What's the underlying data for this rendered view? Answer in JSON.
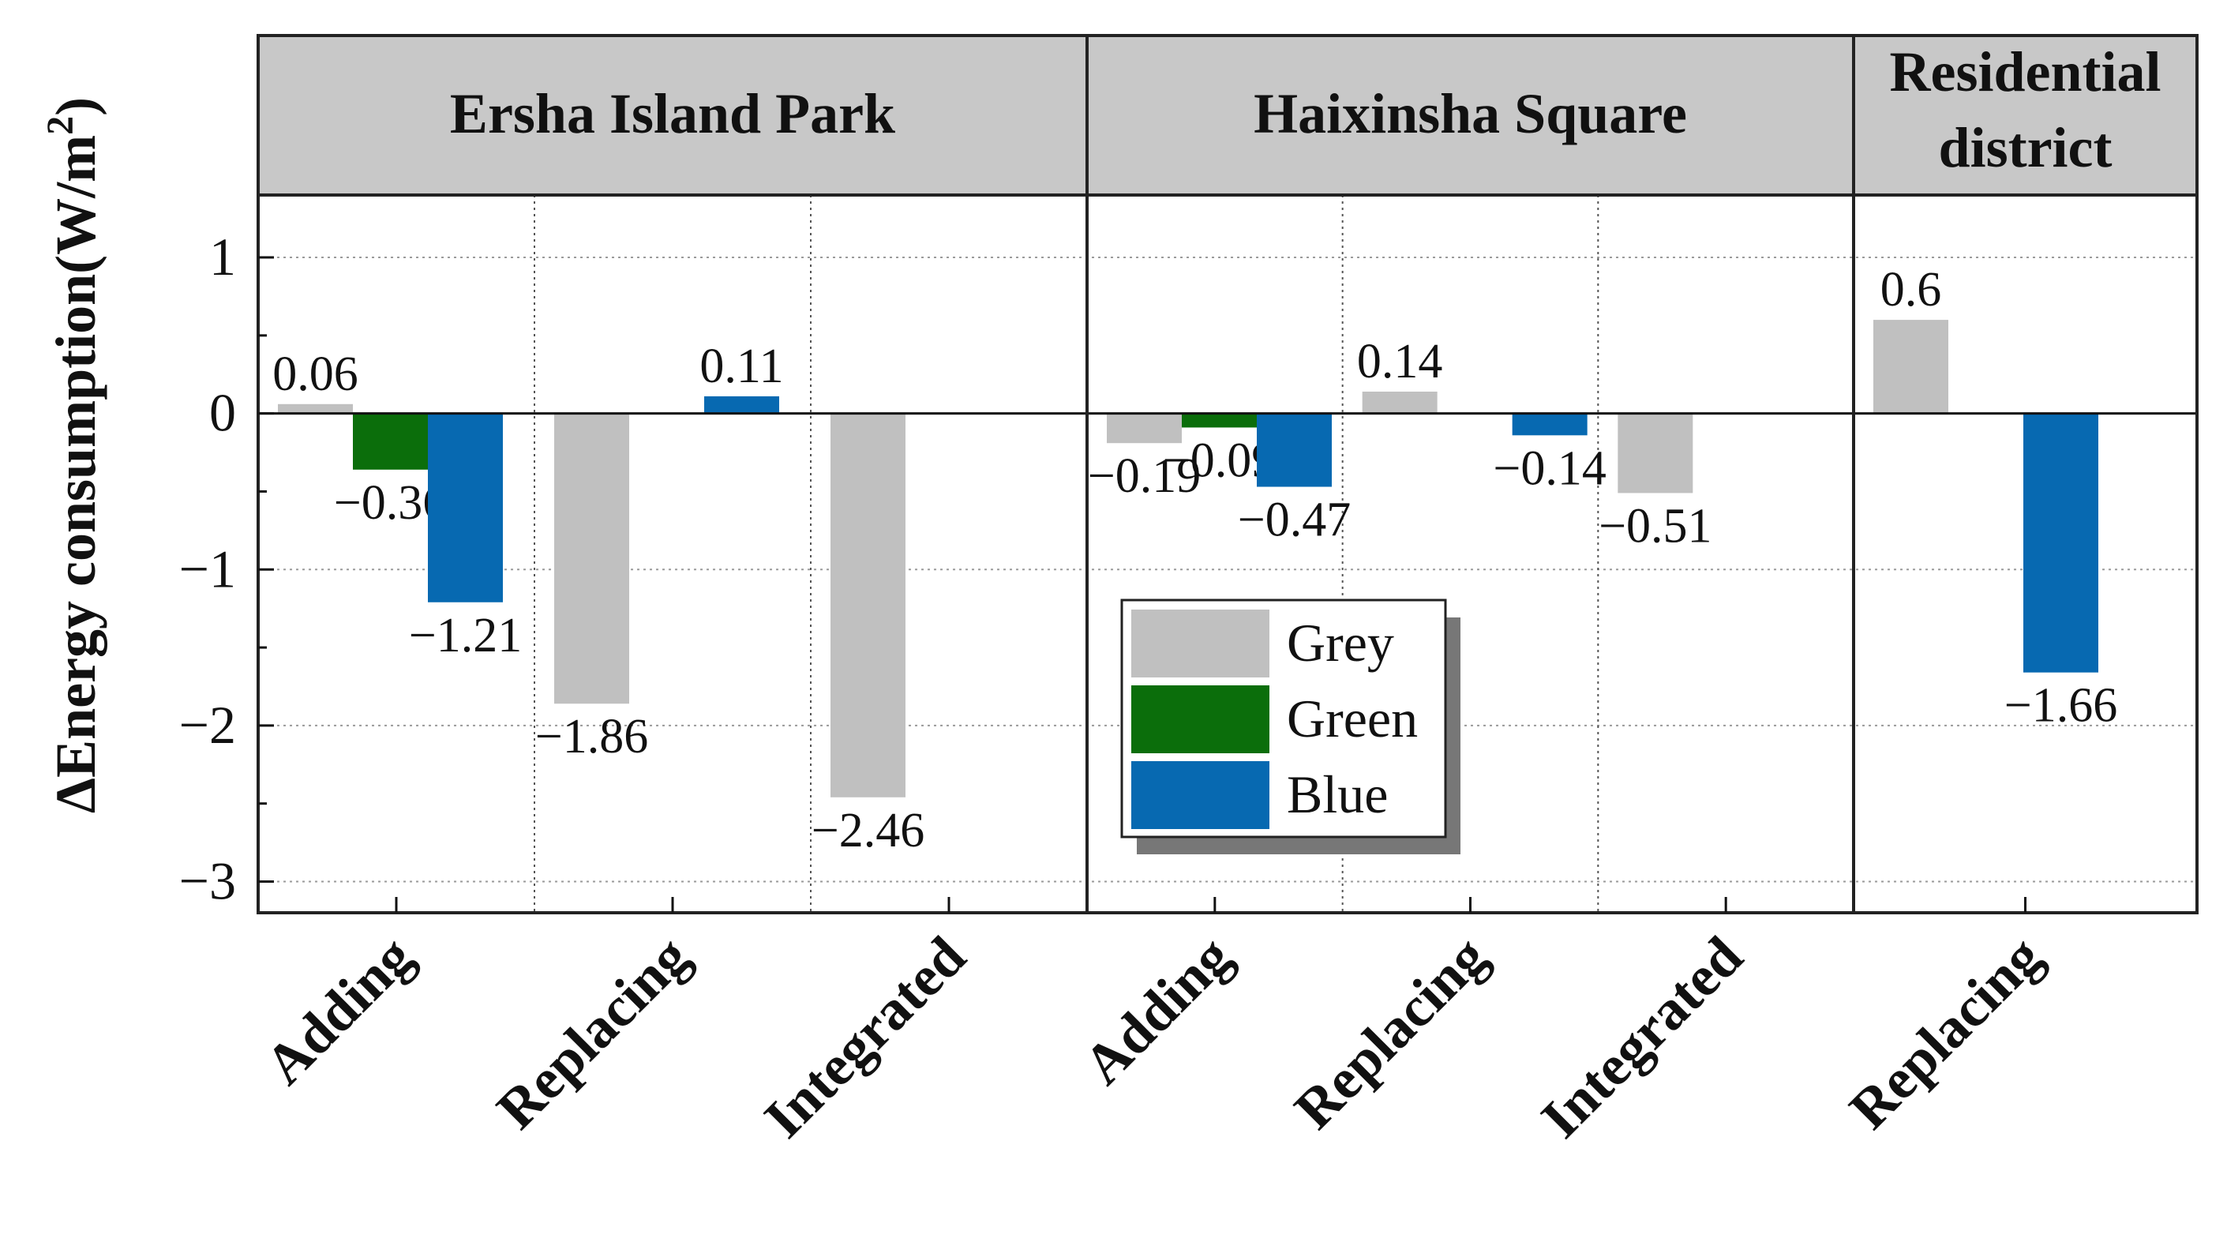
{
  "chart_data": {
    "type": "bar",
    "ylabel": "ΔEnergy consumption(W/m",
    "ylabel_sup": "2",
    "ylabel_close": ")",
    "ylim": [
      -3.2,
      1.4
    ],
    "yticks": [
      1,
      0,
      -1,
      -2,
      -3
    ],
    "ytick_labels": [
      "1",
      "0",
      "−1",
      "−2",
      "−3"
    ],
    "grid": true,
    "legend_position": "center",
    "colors": {
      "Grey": "#c0c0c0",
      "Green": "#0b6e0b",
      "Blue": "#0769b1"
    },
    "legend": [
      "Grey",
      "Green",
      "Blue"
    ],
    "panels": [
      {
        "title": "Ersha Island Park",
        "groups": [
          {
            "label": "Adding",
            "bars": [
              {
                "series": "Grey",
                "value": 0.06,
                "label": "0.06"
              },
              {
                "series": "Green",
                "value": -0.36,
                "label": "−0.36"
              },
              {
                "series": "Blue",
                "value": -1.21,
                "label": "−1.21"
              }
            ]
          },
          {
            "label": "Replacing",
            "bars": [
              {
                "series": "Grey",
                "value": -1.86,
                "label": "−1.86"
              },
              {
                "series": "Green",
                "value": null,
                "label": ""
              },
              {
                "series": "Blue",
                "value": 0.11,
                "label": "0.11"
              }
            ]
          },
          {
            "label": "Integrated",
            "bars": [
              {
                "series": "Grey",
                "value": -2.46,
                "label": "−2.46"
              }
            ]
          }
        ]
      },
      {
        "title": "Haixinsha Square",
        "groups": [
          {
            "label": "Adding",
            "bars": [
              {
                "series": "Grey",
                "value": -0.19,
                "label": "−0.19"
              },
              {
                "series": "Green",
                "value": -0.09,
                "label": "−0.09"
              },
              {
                "series": "Blue",
                "value": -0.47,
                "label": "−0.47"
              }
            ]
          },
          {
            "label": "Replacing",
            "bars": [
              {
                "series": "Grey",
                "value": 0.14,
                "label": "0.14"
              },
              {
                "series": "Green",
                "value": null,
                "label": ""
              },
              {
                "series": "Blue",
                "value": -0.14,
                "label": "−0.14"
              }
            ]
          },
          {
            "label": "Integrated",
            "bars": [
              {
                "series": "Grey",
                "value": -0.51,
                "label": "−0.51"
              }
            ]
          }
        ]
      },
      {
        "title": "Residential district",
        "title_lines": [
          "Residential",
          "district"
        ],
        "groups": [
          {
            "label": "Replacing",
            "bars": [
              {
                "series": "Grey",
                "value": 0.6,
                "label": "0.6"
              },
              {
                "series": "Green",
                "value": null,
                "label": ""
              },
              {
                "series": "Blue",
                "value": -1.66,
                "label": "−1.66"
              }
            ]
          }
        ]
      }
    ]
  }
}
